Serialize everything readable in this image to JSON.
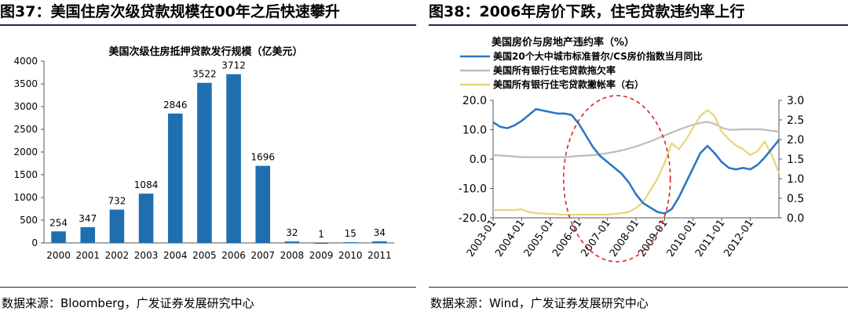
{
  "left": {
    "title": "图37：美国住房次级贷款规模在00年之后快速攀升",
    "source": "数据来源：Bloomberg，广发证券发展研究中心"
  },
  "right": {
    "title": "图38：2006年房价下跌，住宅贷款违约率上行",
    "source": "数据来源：Wind，广发证券发展研究中心"
  },
  "colors": {
    "bar": "#1f6fb0",
    "case_shiller": "#2b78c4",
    "delinquency": "#bdbdbd",
    "chargeoff": "#e8d57a",
    "circle": "#d62728"
  },
  "chart_data": [
    {
      "type": "bar",
      "title": "美国次级住房抵押贷款发行规模（亿美元）",
      "categories": [
        "2000",
        "2001",
        "2002",
        "2003",
        "2004",
        "2005",
        "2006",
        "2007",
        "2008",
        "2009",
        "2010",
        "2011"
      ],
      "values": [
        254,
        347,
        732,
        1084,
        2846,
        3522,
        3712,
        1696,
        32,
        1,
        15,
        34
      ],
      "ylim": [
        0,
        4000
      ],
      "yticks": [
        0,
        500,
        1000,
        1500,
        2000,
        2500,
        3000,
        3500,
        4000
      ],
      "grid": false,
      "data_labels": true
    },
    {
      "type": "line",
      "title": "美国房价与房地产违约率（%）",
      "x_start": "2003-01",
      "x_ticks": [
        "2003-01",
        "2004-01",
        "2005-01",
        "2006-01",
        "2007-01",
        "2008-01",
        "2009-01",
        "2010-01",
        "2011-01",
        "2012-01"
      ],
      "y_left": {
        "ylim": [
          -20,
          20
        ],
        "ticks": [
          "-20.0",
          "-10.0",
          "0.0",
          "10.0",
          "20.0"
        ],
        "values": [
          -20,
          -10,
          0,
          10,
          20
        ]
      },
      "y_right": {
        "ylim": [
          0,
          3
        ],
        "ticks": [
          "0.0",
          "0.5",
          "1.0",
          "1.5",
          "2.0",
          "2.5",
          "3.0"
        ],
        "values": [
          0,
          0.5,
          1,
          1.5,
          2,
          2.5,
          3
        ]
      },
      "legend_position": "top-left",
      "series": [
        {
          "name": "美国20个大中城市标准普尔/CS房价指数当月同比",
          "axis": "left",
          "color_key": "case_shiller",
          "points": [
            [
              0,
              12.5
            ],
            [
              3,
              11
            ],
            [
              6,
              10.5
            ],
            [
              9,
              11.5
            ],
            [
              12,
              13
            ],
            [
              15,
              15
            ],
            [
              18,
              17
            ],
            [
              21,
              16.5
            ],
            [
              24,
              16
            ],
            [
              27,
              15.5
            ],
            [
              30,
              15.5
            ],
            [
              33,
              15
            ],
            [
              36,
              12
            ],
            [
              39,
              8
            ],
            [
              42,
              4
            ],
            [
              45,
              1
            ],
            [
              48,
              -1
            ],
            [
              51,
              -3
            ],
            [
              54,
              -5
            ],
            [
              57,
              -8
            ],
            [
              60,
              -12
            ],
            [
              63,
              -15
            ],
            [
              66,
              -16.5
            ],
            [
              69,
              -18
            ],
            [
              72,
              -18.5
            ],
            [
              75,
              -17
            ],
            [
              78,
              -13
            ],
            [
              81,
              -8
            ],
            [
              84,
              -3
            ],
            [
              87,
              2
            ],
            [
              90,
              4.5
            ],
            [
              93,
              2
            ],
            [
              96,
              -1
            ],
            [
              99,
              -3
            ],
            [
              102,
              -3.5
            ],
            [
              105,
              -3
            ],
            [
              108,
              -3.5
            ],
            [
              111,
              -2
            ],
            [
              114,
              0.5
            ],
            [
              117,
              3.5
            ],
            [
              120,
              6.5
            ]
          ]
        },
        {
          "name": "美国所有银行住宅贷款拖欠率",
          "axis": "right",
          "color_key": "delinquency",
          "points": [
            [
              0,
              1.6
            ],
            [
              6,
              1.58
            ],
            [
              12,
              1.55
            ],
            [
              18,
              1.55
            ],
            [
              24,
              1.55
            ],
            [
              30,
              1.55
            ],
            [
              36,
              1.58
            ],
            [
              42,
              1.6
            ],
            [
              48,
              1.65
            ],
            [
              54,
              1.72
            ],
            [
              60,
              1.82
            ],
            [
              66,
              1.95
            ],
            [
              72,
              2.1
            ],
            [
              78,
              2.25
            ],
            [
              84,
              2.38
            ],
            [
              87,
              2.42
            ],
            [
              90,
              2.45
            ],
            [
              93,
              2.4
            ],
            [
              96,
              2.3
            ],
            [
              99,
              2.25
            ],
            [
              102,
              2.25
            ],
            [
              105,
              2.26
            ],
            [
              108,
              2.26
            ],
            [
              111,
              2.26
            ],
            [
              114,
              2.25
            ],
            [
              117,
              2.22
            ],
            [
              120,
              2.2
            ]
          ]
        },
        {
          "name": "美国所有银行住宅贷款撇帐率（右）",
          "axis": "right",
          "color_key": "chargeoff",
          "points": [
            [
              0,
              0.2
            ],
            [
              6,
              0.2
            ],
            [
              9,
              0.2
            ],
            [
              12,
              0.22
            ],
            [
              15,
              0.15
            ],
            [
              18,
              0.12
            ],
            [
              24,
              0.1
            ],
            [
              30,
              0.08
            ],
            [
              36,
              0.08
            ],
            [
              42,
              0.08
            ],
            [
              48,
              0.08
            ],
            [
              54,
              0.12
            ],
            [
              57,
              0.15
            ],
            [
              60,
              0.25
            ],
            [
              63,
              0.4
            ],
            [
              66,
              0.7
            ],
            [
              69,
              1.0
            ],
            [
              72,
              1.4
            ],
            [
              75,
              1.9
            ],
            [
              78,
              1.75
            ],
            [
              81,
              2.0
            ],
            [
              84,
              2.3
            ],
            [
              87,
              2.6
            ],
            [
              90,
              2.75
            ],
            [
              93,
              2.6
            ],
            [
              96,
              2.2
            ],
            [
              99,
              2.0
            ],
            [
              102,
              1.85
            ],
            [
              105,
              1.75
            ],
            [
              108,
              1.6
            ],
            [
              111,
              1.7
            ],
            [
              114,
              1.95
            ],
            [
              117,
              1.6
            ],
            [
              120,
              1.15
            ]
          ]
        }
      ],
      "annotation": "red dashed ellipse highlighting 2006–2009 period"
    }
  ]
}
